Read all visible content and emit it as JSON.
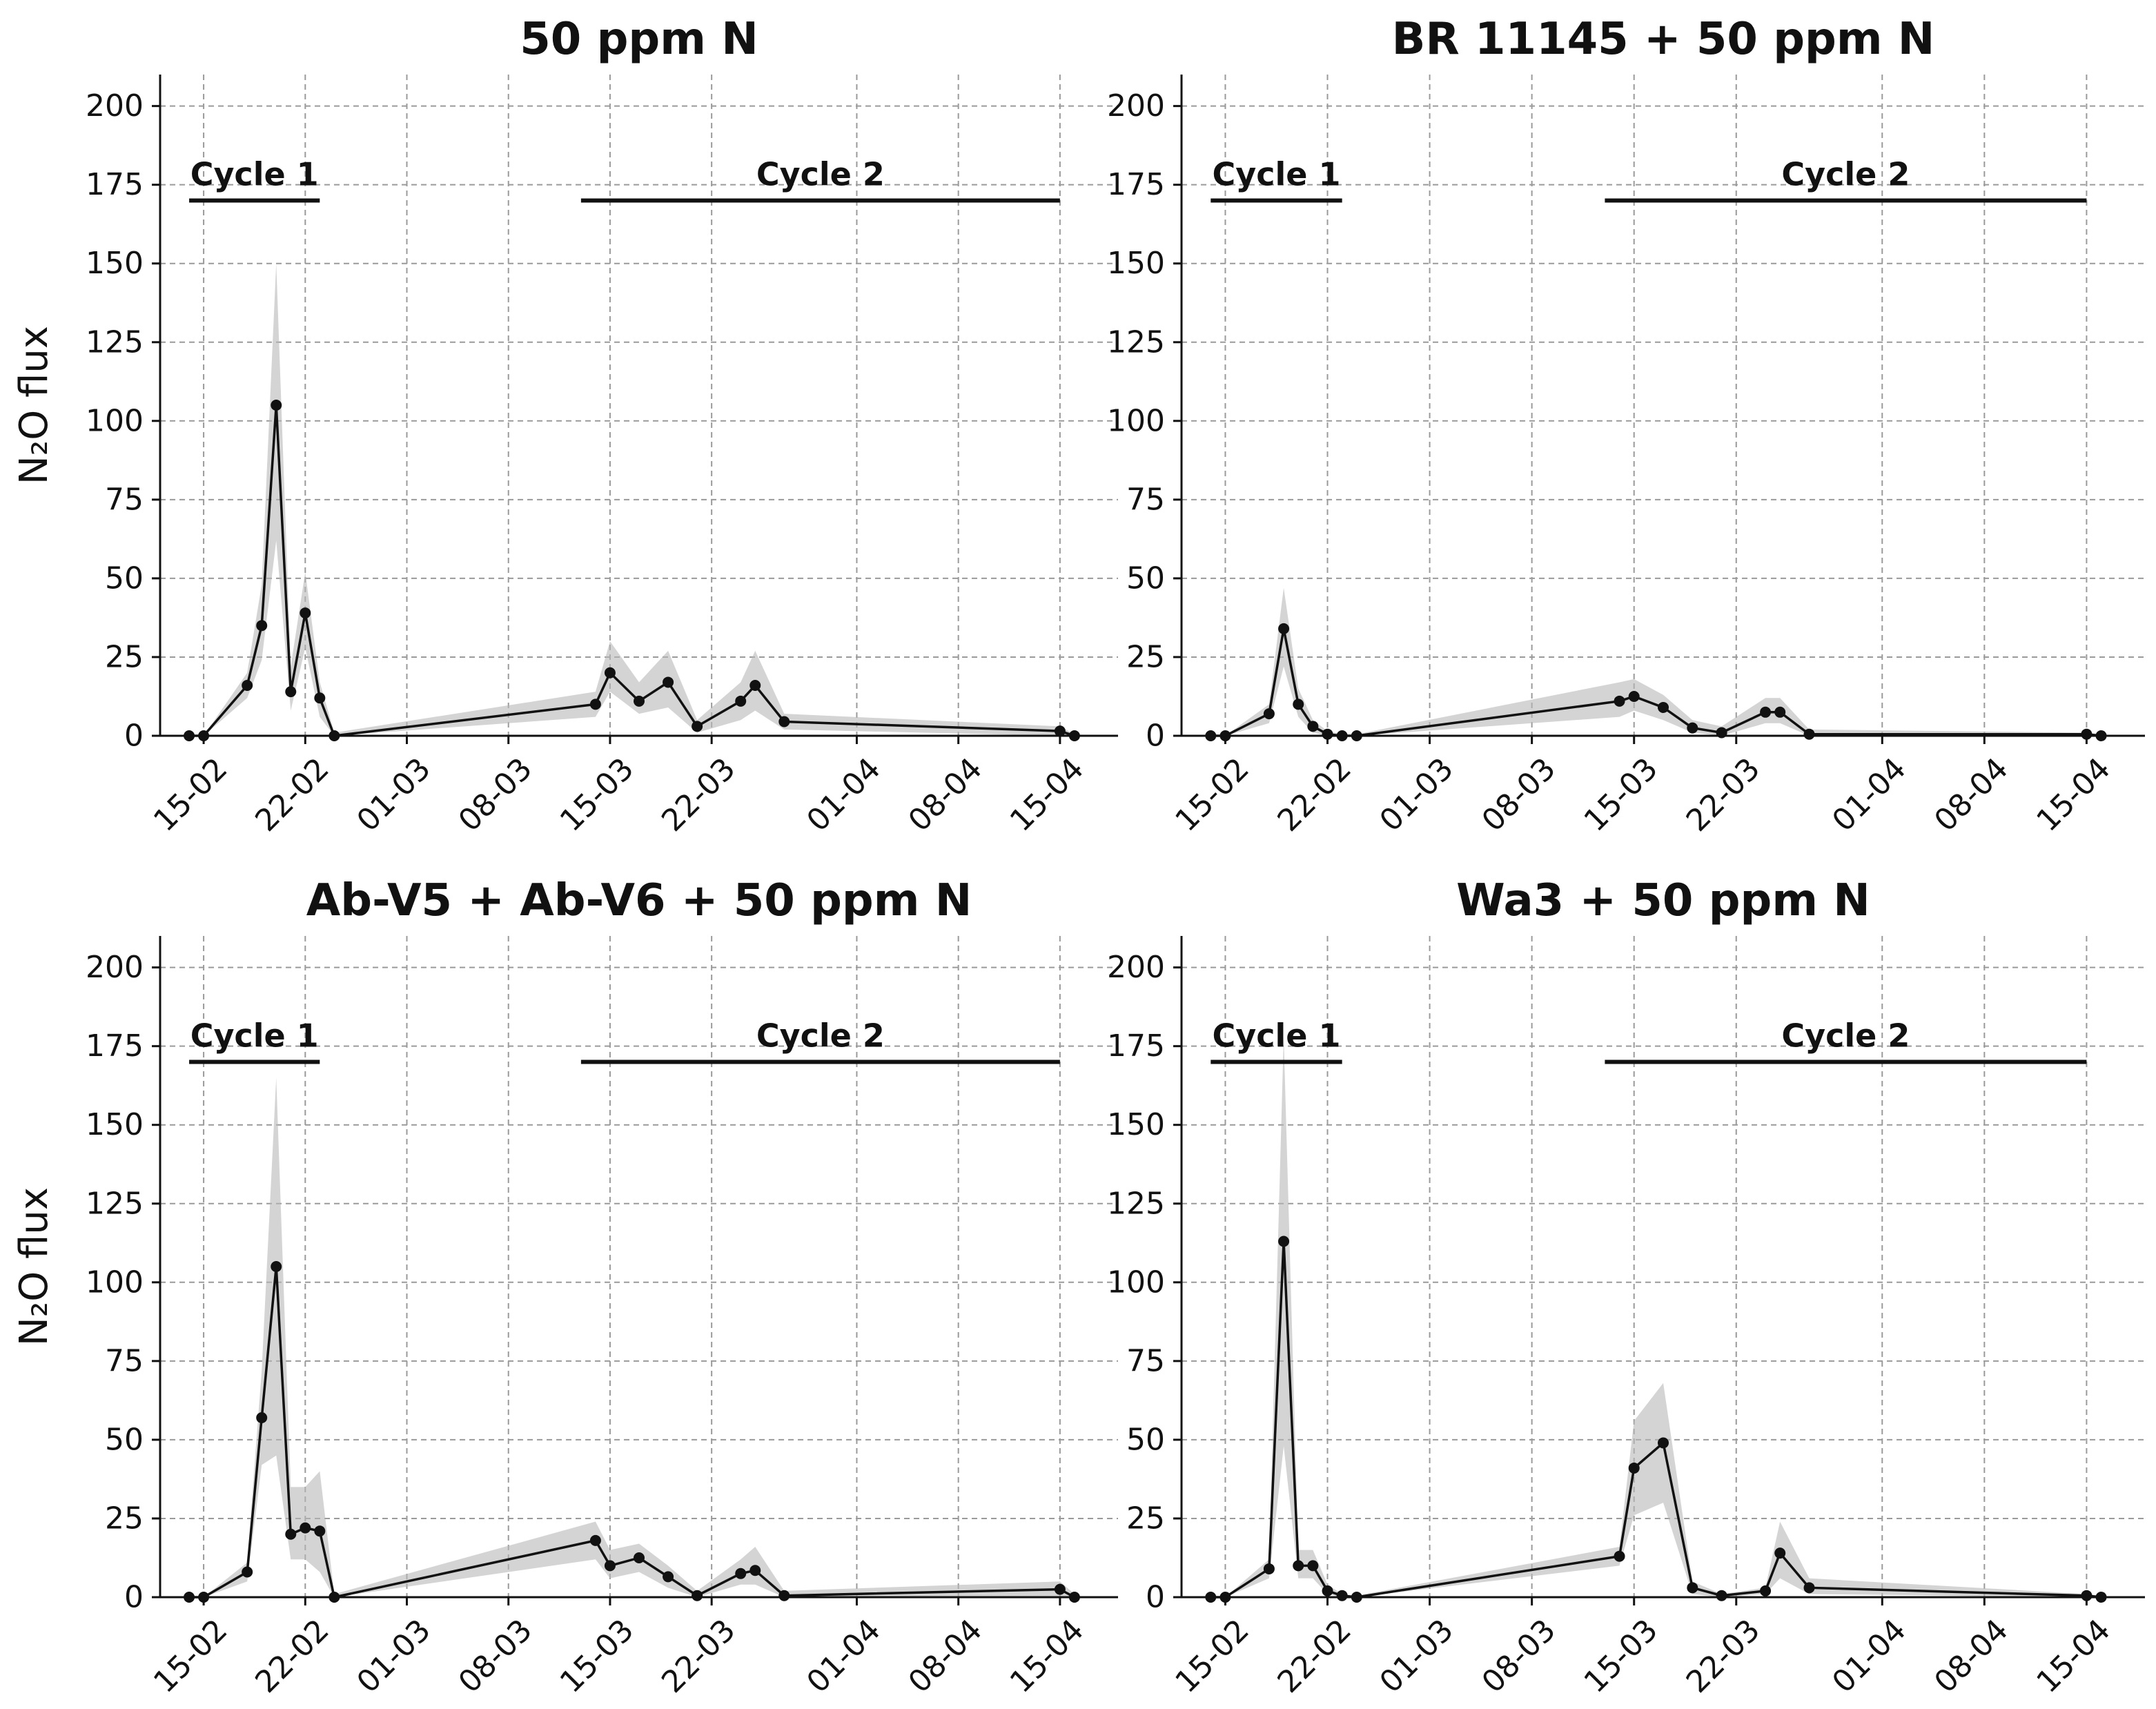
{
  "figure": {
    "ylabel": "N₂O flux",
    "ylim": [
      0,
      210
    ],
    "yticks": [
      0,
      25,
      50,
      75,
      100,
      125,
      150,
      175,
      200
    ],
    "xrange_days": [
      -3,
      63
    ],
    "xticks": [
      {
        "day": 0,
        "label": "15-02"
      },
      {
        "day": 7,
        "label": "22-02"
      },
      {
        "day": 14,
        "label": "01-03"
      },
      {
        "day": 21,
        "label": "08-03"
      },
      {
        "day": 28,
        "label": "15-03"
      },
      {
        "day": 35,
        "label": "22-03"
      },
      {
        "day": 45,
        "label": "01-04"
      },
      {
        "day": 52,
        "label": "08-04"
      },
      {
        "day": 59,
        "label": "15-04"
      }
    ],
    "cycles": [
      {
        "label": "Cycle 1",
        "start_day": -1,
        "end_day": 8,
        "y": 170
      },
      {
        "label": "Cycle 2",
        "start_day": 26,
        "end_day": 59,
        "y": 170
      }
    ]
  },
  "chart_data": [
    {
      "type": "line",
      "title": "50 ppm N",
      "ylabel": "N₂O flux",
      "ylim": [
        0,
        210
      ],
      "x": [
        -1,
        0,
        3,
        4,
        5,
        6,
        7,
        8,
        9,
        27,
        28,
        30,
        32,
        34,
        37,
        38,
        40,
        59,
        60
      ],
      "y": [
        0,
        0,
        16,
        35,
        105,
        14,
        39,
        12,
        0,
        10,
        20,
        11,
        17,
        3,
        11,
        16,
        4.5,
        1.5,
        0
      ],
      "lower": [
        0,
        0,
        12,
        24,
        62,
        8,
        28,
        6,
        0,
        6,
        14,
        7,
        9,
        1,
        5,
        8,
        2,
        0,
        0
      ],
      "upper": [
        0,
        0,
        20,
        48,
        150,
        22,
        52,
        17,
        1,
        14,
        30,
        17,
        27,
        5,
        17,
        27,
        7,
        3,
        0.5
      ]
    },
    {
      "type": "line",
      "title": "BR 11145 + 50 ppm N",
      "ylabel": "",
      "ylim": [
        0,
        210
      ],
      "x": [
        -1,
        0,
        3,
        4,
        5,
        6,
        7,
        8,
        9,
        27,
        28,
        30,
        32,
        34,
        37,
        38,
        40,
        59,
        60
      ],
      "y": [
        0,
        0,
        7,
        34,
        10,
        3,
        0.5,
        0,
        0,
        11,
        12.5,
        9,
        2.5,
        1,
        7.5,
        7.5,
        0.5,
        0.5,
        0
      ],
      "lower": [
        0,
        0,
        4,
        22,
        6,
        1,
        0,
        0,
        0,
        6,
        8,
        5,
        1,
        0,
        4,
        4,
        0,
        0,
        0
      ],
      "upper": [
        0,
        0,
        10,
        47,
        15,
        5,
        1.5,
        0.5,
        0.5,
        17,
        18,
        13,
        5,
        3,
        12,
        12,
        2,
        1,
        0.5
      ]
    },
    {
      "type": "line",
      "title": "Ab-V5 + Ab-V6 + 50 ppm N",
      "ylabel": "N₂O flux",
      "ylim": [
        0,
        210
      ],
      "x": [
        -1,
        0,
        3,
        4,
        5,
        6,
        7,
        8,
        9,
        27,
        28,
        30,
        32,
        34,
        37,
        38,
        40,
        59,
        60
      ],
      "y": [
        0,
        0,
        8,
        57,
        105,
        20,
        22,
        21,
        0,
        18,
        10,
        12.5,
        6.5,
        0.5,
        7.5,
        8.5,
        0.5,
        2.5,
        0
      ],
      "lower": [
        0,
        0,
        5,
        42,
        45,
        12,
        12,
        8,
        0,
        12,
        6,
        8,
        3,
        0,
        4,
        4,
        0,
        0,
        0
      ],
      "upper": [
        0,
        0,
        11,
        72,
        165,
        35,
        35,
        40,
        1,
        24,
        15,
        17,
        10,
        2,
        12,
        16,
        2,
        5,
        1
      ]
    },
    {
      "type": "line",
      "title": "Wa3 + 50 ppm N",
      "ylabel": "",
      "ylim": [
        0,
        210
      ],
      "x": [
        -1,
        0,
        3,
        4,
        5,
        6,
        7,
        8,
        9,
        27,
        28,
        30,
        32,
        34,
        37,
        38,
        40,
        59,
        60
      ],
      "y": [
        0,
        0,
        9,
        113,
        10,
        10,
        2,
        0.5,
        0,
        13,
        41,
        49,
        3,
        0.5,
        2,
        14,
        3,
        0.5,
        0
      ],
      "lower": [
        0,
        0,
        6,
        48,
        6,
        6,
        1,
        0,
        0,
        10,
        26,
        30,
        1,
        0,
        1,
        6,
        1,
        0,
        0
      ],
      "upper": [
        0,
        0,
        12,
        178,
        15,
        15,
        4,
        1,
        0.5,
        16,
        56,
        68,
        5,
        1,
        3,
        24,
        6,
        1,
        0.5
      ]
    }
  ]
}
